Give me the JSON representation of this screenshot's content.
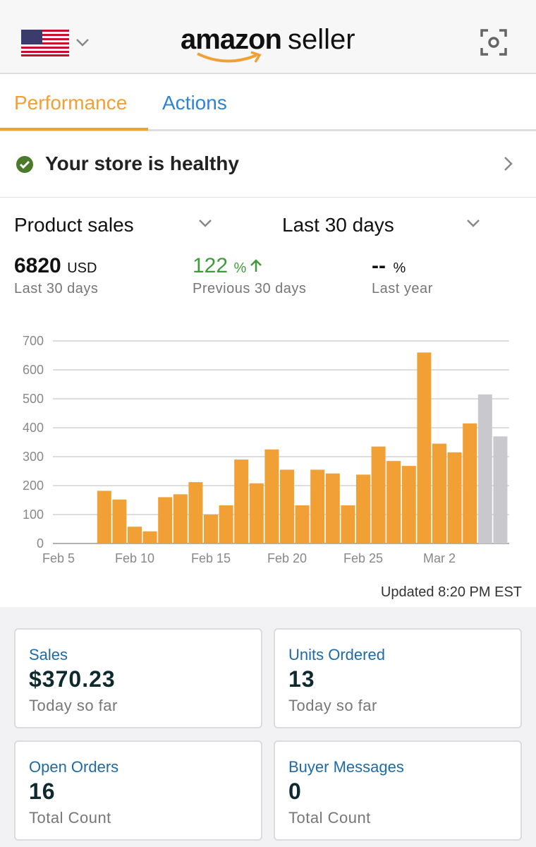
{
  "header": {
    "brand": "amazon",
    "product": "seller"
  },
  "tabs": [
    "Performance",
    "Actions"
  ],
  "status": "Your store is healthy",
  "selectors": {
    "metric": "Product sales",
    "period": "Last 30 days"
  },
  "summary": [
    {
      "value": "6820",
      "unit": "USD",
      "caption": "Last 30 days"
    },
    {
      "value": "122",
      "unit": "%",
      "caption": "Previous 30 days"
    },
    {
      "value": "--",
      "unit": "%",
      "caption": "Last year"
    }
  ],
  "chart_data": {
    "type": "bar",
    "categories": [
      "Feb 5",
      null,
      null,
      null,
      null,
      "Feb 10",
      null,
      null,
      null,
      null,
      "Feb 15",
      null,
      null,
      null,
      null,
      "Feb 20",
      null,
      null,
      null,
      null,
      "Feb 25",
      null,
      null,
      null,
      null,
      "Mar 2",
      null,
      null,
      null,
      null
    ],
    "values": [
      null,
      null,
      null,
      182,
      152,
      58,
      42,
      160,
      170,
      212,
      100,
      132,
      290,
      208,
      325,
      255,
      132,
      255,
      242,
      132,
      238,
      335,
      285,
      268,
      660,
      345,
      315,
      415,
      515,
      370
    ],
    "colors": [
      "#f0a035",
      "#f0a035",
      "#f0a035",
      "#f0a035",
      "#f0a035",
      "#f0a035",
      "#f0a035",
      "#f0a035",
      "#f0a035",
      "#f0a035",
      "#f0a035",
      "#f0a035",
      "#f0a035",
      "#f0a035",
      "#f0a035",
      "#f0a035",
      "#f0a035",
      "#f0a035",
      "#f0a035",
      "#f0a035",
      "#f0a035",
      "#f0a035",
      "#f0a035",
      "#f0a035",
      "#f0a035",
      "#f0a035",
      "#f0a035",
      "#f0a035",
      "#c8c8cd",
      "#c8c8cd"
    ],
    "ylim": [
      0,
      700
    ],
    "yticks": [
      0,
      100,
      200,
      300,
      400,
      500,
      600,
      700
    ],
    "grid": true
  },
  "updated": "Updated 8:20 PM EST",
  "cards": [
    {
      "title": "Sales",
      "value": "$370.23",
      "caption": "Today so far"
    },
    {
      "title": "Units Ordered",
      "value": "13",
      "caption": "Today so far"
    },
    {
      "title": "Open Orders",
      "value": "16",
      "caption": "Total Count"
    },
    {
      "title": "Buyer Messages",
      "value": "0",
      "caption": "Total Count"
    }
  ]
}
